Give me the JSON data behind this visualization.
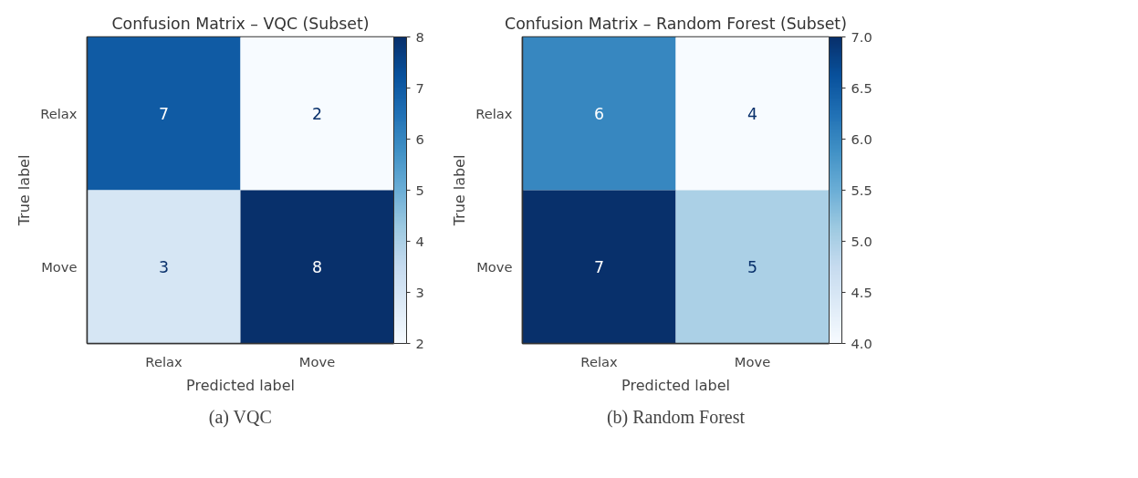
{
  "chart_data": [
    {
      "type": "heatmap",
      "title": "Confusion Matrix – VQC (Subset)",
      "xlabel": "Predicted label",
      "ylabel": "True label",
      "categories": [
        "Relax",
        "Move"
      ],
      "y_categories": [
        "Relax",
        "Move"
      ],
      "cells": [
        [
          7,
          2
        ],
        [
          3,
          8
        ]
      ],
      "clim": [
        2,
        8
      ],
      "cticks": [
        2,
        3,
        4,
        5,
        6,
        7,
        8
      ],
      "data_labels": true,
      "annotations": [
        "(a) VQC"
      ]
    },
    {
      "type": "heatmap",
      "title": "Confusion Matrix – Random Forest (Subset)",
      "xlabel": "Predicted label",
      "ylabel": "True label",
      "categories": [
        "Relax",
        "Move"
      ],
      "y_categories": [
        "Relax",
        "Move"
      ],
      "cells": [
        [
          6,
          4
        ],
        [
          7,
          5
        ]
      ],
      "clim": [
        4,
        7
      ],
      "cticks": [
        {
          "value": 4,
          "label": "4.0"
        },
        {
          "value": 4.5,
          "label": "4.5"
        },
        {
          "value": 5,
          "label": "5.0"
        },
        {
          "value": 5.5,
          "label": "5.5"
        },
        {
          "value": 6,
          "label": "6.0"
        },
        {
          "value": 6.5,
          "label": "6.5"
        },
        {
          "value": 7,
          "label": "7.0"
        }
      ],
      "data_labels": true,
      "annotations": [
        "(b) Random Forest"
      ]
    }
  ]
}
